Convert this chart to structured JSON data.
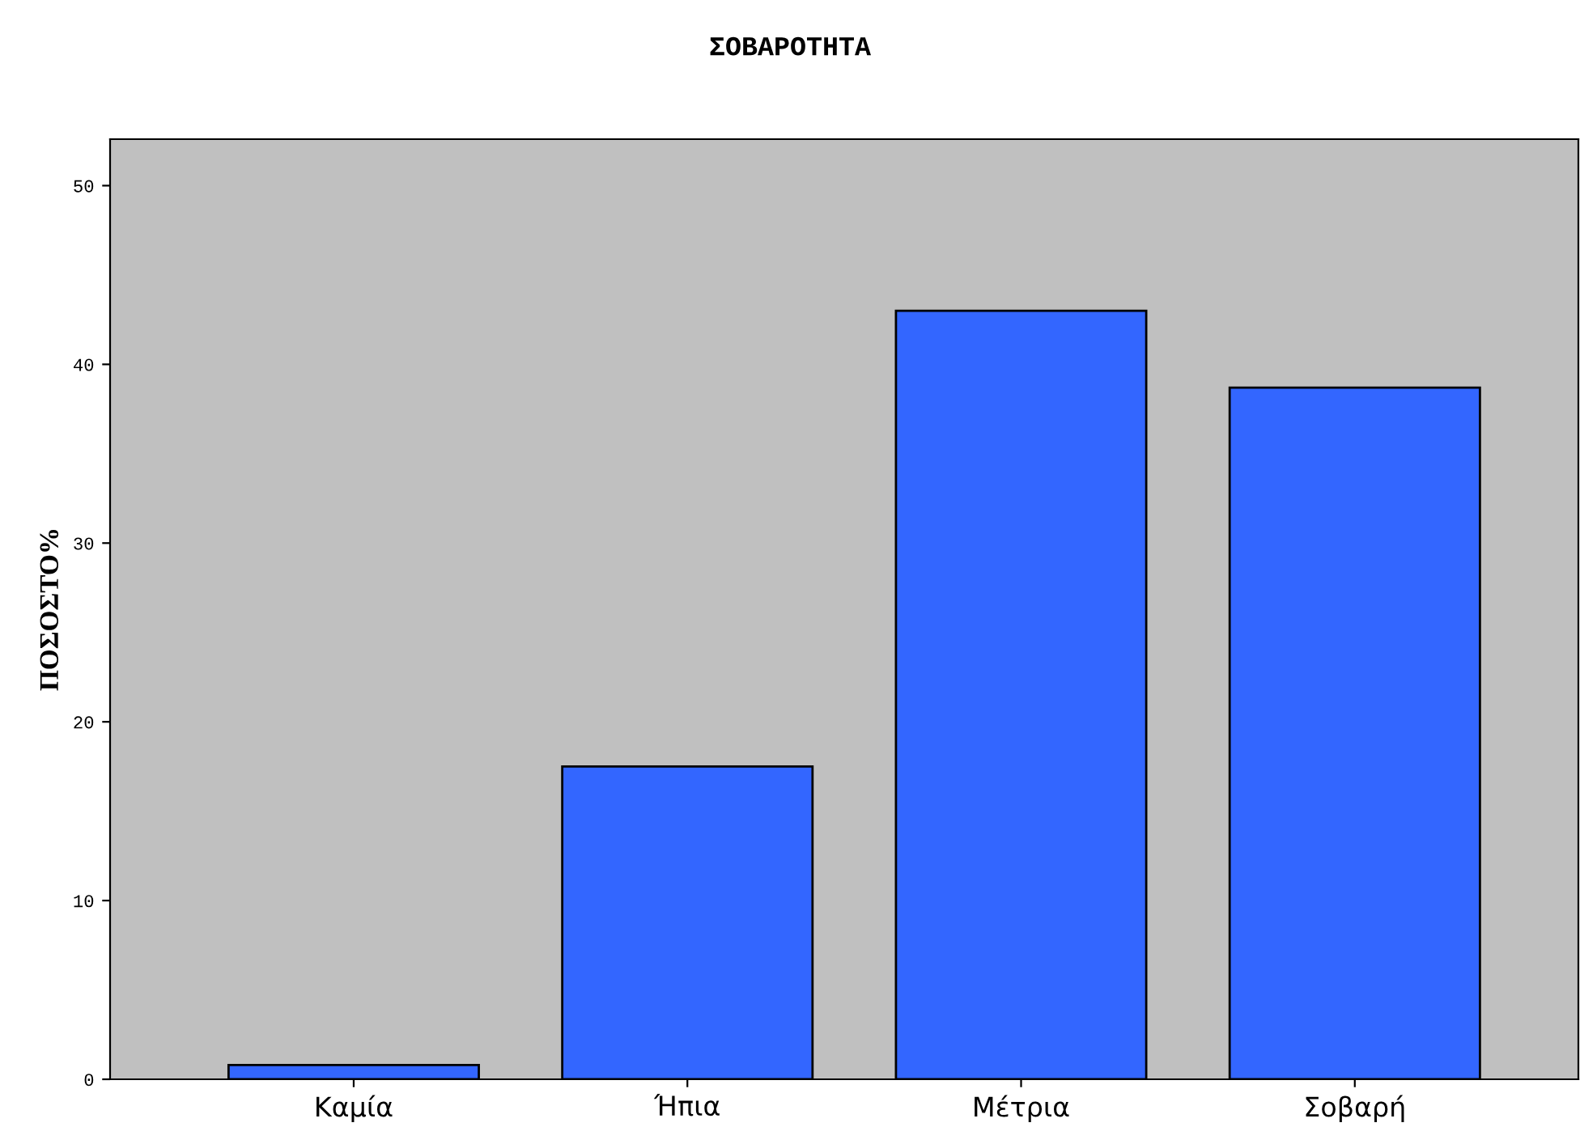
{
  "chart_data": {
    "type": "bar",
    "title": "ΣΟΒΑΡΟΤΗΤΑ",
    "ylabel": "ΠΟΣΟΣΤΟ%",
    "categories": [
      "Καμία",
      "Ήπια",
      "Μέτρια",
      "Σοβαρή"
    ],
    "values": [
      0.8,
      17.5,
      43.0,
      38.7
    ],
    "color": "#3366ff",
    "ylim": [
      0,
      52.6
    ],
    "yticks": [
      0,
      10,
      20,
      30,
      40,
      50
    ],
    "grid": false,
    "legend": false
  }
}
